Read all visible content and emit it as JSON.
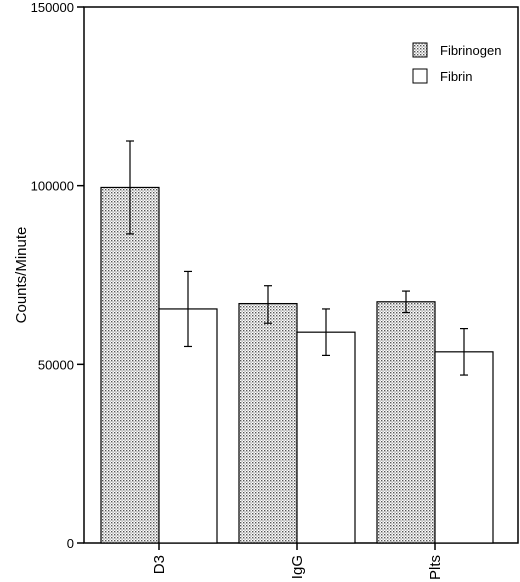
{
  "chart_data": {
    "type": "bar",
    "title": "",
    "xlabel": "",
    "ylabel": "Counts/Minute",
    "ylim": [
      0,
      150000
    ],
    "yticks": [
      0,
      50000,
      100000,
      150000
    ],
    "categories": [
      "D3",
      "IgG",
      "Plts"
    ],
    "series": [
      {
        "name": "Fibrinogen",
        "pattern": "dotted",
        "values": [
          99500,
          67000,
          67500
        ],
        "err_low": [
          86500,
          61500,
          64500
        ],
        "err_high": [
          112500,
          72000,
          70500
        ]
      },
      {
        "name": "Fibrin",
        "pattern": "white",
        "values": [
          65500,
          59000,
          53500
        ],
        "err_low": [
          55000,
          52500,
          47000
        ],
        "err_high": [
          76000,
          65500,
          60000
        ]
      }
    ],
    "grid": false,
    "legend": "top-right"
  }
}
